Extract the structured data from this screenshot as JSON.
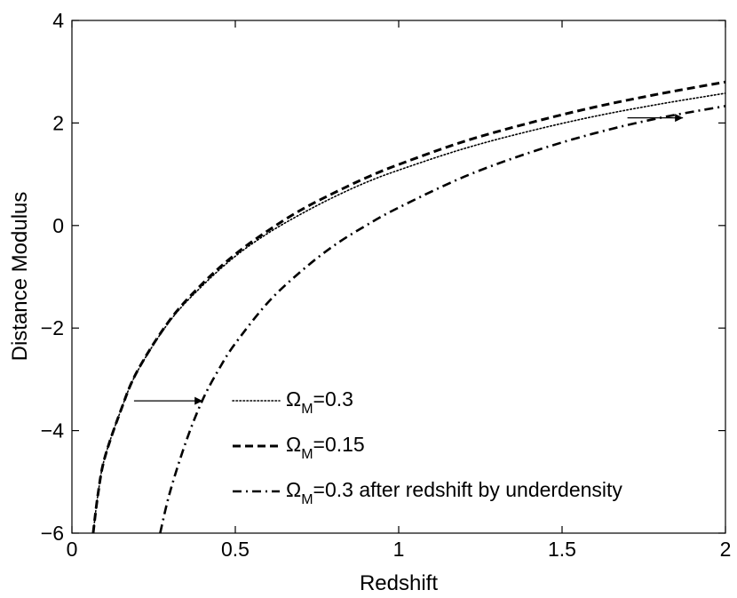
{
  "chart_data": {
    "type": "line",
    "title": "",
    "xlabel": "Redshift",
    "ylabel": "Distance Modulus",
    "xlim": [
      0,
      2
    ],
    "ylim": [
      -6,
      4
    ],
    "xticks": [
      0,
      0.5,
      1,
      1.5,
      2
    ],
    "xtick_labels": [
      "0",
      "0.5",
      "1",
      "1.5",
      "2"
    ],
    "yticks": [
      -6,
      -4,
      -2,
      0,
      2,
      4
    ],
    "ytick_labels": [
      "−6",
      "−4",
      "−2",
      "0",
      "2",
      "4"
    ],
    "grid": false,
    "legend_position": "bottom-right",
    "series": [
      {
        "name": "ΩM=0.3",
        "legend_base": "Ω",
        "legend_sub": "M",
        "legend_rest": "=0.3",
        "style": "dotted",
        "x": [
          0.065,
          0.08,
          0.1,
          0.15,
          0.2,
          0.3,
          0.4,
          0.5,
          0.6,
          0.7,
          0.8,
          0.9,
          1.0,
          1.2,
          1.4,
          1.6,
          1.8,
          2.0
        ],
        "y": [
          -6.0,
          -5.23,
          -4.54,
          -3.6,
          -2.85,
          -1.86,
          -1.17,
          -0.6,
          -0.15,
          0.22,
          0.55,
          0.84,
          1.08,
          1.5,
          1.84,
          2.13,
          2.37,
          2.58
        ]
      },
      {
        "name": "ΩM=0.15",
        "legend_base": "Ω",
        "legend_sub": "M",
        "legend_rest": "=0.15",
        "style": "dashed",
        "x": [
          0.065,
          0.08,
          0.1,
          0.15,
          0.2,
          0.3,
          0.4,
          0.5,
          0.6,
          0.7,
          0.8,
          0.9,
          1.0,
          1.2,
          1.4,
          1.6,
          1.8,
          2.0
        ],
        "y": [
          -6.0,
          -5.23,
          -4.54,
          -3.6,
          -2.84,
          -1.84,
          -1.13,
          -0.56,
          -0.1,
          0.3,
          0.63,
          0.93,
          1.19,
          1.64,
          2.0,
          2.31,
          2.57,
          2.8
        ]
      },
      {
        "name": "ΩM=0.3 after redshift by underdensity",
        "legend_base": "Ω",
        "legend_sub": "M",
        "legend_rest": "=0.3 after redshift by underdensity",
        "style": "dashdot",
        "x": [
          0.27,
          0.3,
          0.35,
          0.4,
          0.45,
          0.5,
          0.6,
          0.7,
          0.8,
          0.9,
          1.0,
          1.2,
          1.4,
          1.6,
          1.8,
          2.0
        ],
        "y": [
          -6.0,
          -5.2,
          -4.2,
          -3.4,
          -2.8,
          -2.3,
          -1.5,
          -0.9,
          -0.4,
          0.0,
          0.35,
          0.95,
          1.42,
          1.8,
          2.1,
          2.33
        ]
      }
    ],
    "annotations": [
      {
        "type": "arrow",
        "from": [
          0.19,
          -3.42
        ],
        "to": [
          0.4,
          -3.42
        ]
      },
      {
        "type": "arrow",
        "from": [
          1.7,
          2.1
        ],
        "to": [
          1.87,
          2.1
        ]
      }
    ]
  }
}
